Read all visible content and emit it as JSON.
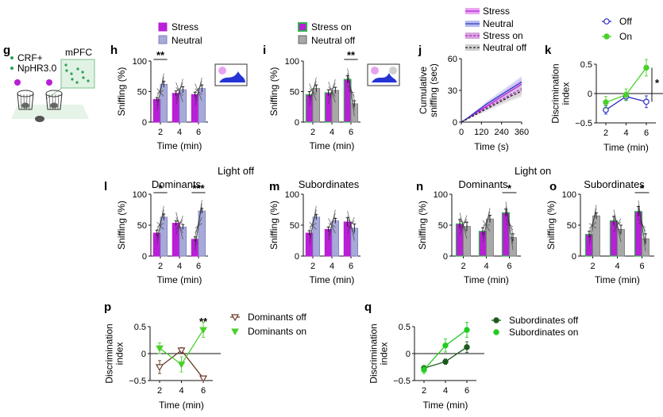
{
  "colors": {
    "stress": "#b81fd6",
    "neutral": "#a7a9d8",
    "stress_on": "#b81fd6",
    "stress_on_edge": "#2fb34a",
    "neutral_off": "#a8a8a8",
    "off": "#2b2bc4",
    "on": "#4ad02a",
    "dom_off": "#6b3b2a",
    "dom_on": "#4ad02a",
    "sub_off": "#1d5a1d",
    "sub_on": "#22cc22",
    "schematic_green": "#2e9c58",
    "schematic_magenta": "#b81fd6"
  },
  "section_labels": {
    "light_off": "Light off",
    "light_on": "Light on"
  },
  "panel_g": {
    "label": "g",
    "legend": [
      "CRF+",
      "NpHR3.0"
    ],
    "region": "mPFC"
  },
  "chart_data": [
    {
      "id": "h",
      "label": "h",
      "type": "bar",
      "categories": [
        "2",
        "4",
        "6"
      ],
      "series": [
        {
          "name": "Stress",
          "values": [
            37,
            47,
            45
          ]
        },
        {
          "name": "Neutral",
          "values": [
            62,
            53,
            55
          ]
        }
      ],
      "errors": [
        [
          3,
          4,
          4
        ],
        [
          5,
          5,
          6
        ]
      ],
      "xlabel": "Time (min)",
      "ylabel": "Sniffing (%)",
      "ylim": [
        0,
        100
      ],
      "yticks": [
        "0",
        "50",
        "100"
      ],
      "legend": [
        "Stress",
        "Neutral"
      ],
      "significance": [
        {
          "category": "2",
          "text": "**"
        }
      ]
    },
    {
      "id": "i",
      "label": "i",
      "type": "bar",
      "categories": [
        "2",
        "4",
        "6"
      ],
      "series": [
        {
          "name": "Stress on",
          "values": [
            45,
            48,
            70
          ]
        },
        {
          "name": "Neutral off",
          "values": [
            55,
            52,
            30
          ]
        }
      ],
      "errors": [
        [
          5,
          5,
          6
        ],
        [
          6,
          5,
          5
        ]
      ],
      "xlabel": "Time (min)",
      "ylabel": "Sniffing (%)",
      "ylim": [
        0,
        100
      ],
      "yticks": [
        "0",
        "50",
        "100"
      ],
      "legend": [
        "Stress on",
        "Neutral off"
      ],
      "significance": [
        {
          "category": "6",
          "text": "**"
        }
      ]
    },
    {
      "id": "j",
      "label": "j",
      "type": "line",
      "x": [
        0,
        30,
        60,
        90,
        120,
        150,
        180,
        210,
        240,
        270,
        300,
        330,
        360
      ],
      "series": [
        {
          "name": "Stress",
          "values": [
            0,
            3,
            6,
            9,
            12,
            15,
            18,
            21,
            24,
            27,
            30,
            33,
            36
          ]
        },
        {
          "name": "Neutral",
          "values": [
            0,
            3,
            6.5,
            10,
            13.5,
            17,
            20,
            23,
            26,
            29,
            32,
            35,
            38
          ]
        },
        {
          "name": "Stress on",
          "values": [
            0,
            2.5,
            5.5,
            8.5,
            11,
            14,
            16.5,
            19,
            21.5,
            24,
            26.5,
            29,
            31.5
          ]
        },
        {
          "name": "Neutral off",
          "values": [
            0,
            2.5,
            5,
            7.5,
            10,
            12.5,
            15,
            17.5,
            20,
            22.5,
            25,
            27,
            29.5
          ]
        }
      ],
      "xlabel": "Time (s)",
      "ylabel": "Cumulative sniffing (sec)",
      "ylabel_lines": [
        "Cumulative",
        "sniffing (sec)"
      ],
      "xlim": [
        0,
        360
      ],
      "ylim": [
        0,
        60
      ],
      "xticks": [
        "0",
        "120",
        "240",
        "360"
      ],
      "yticks": [
        "0",
        "30",
        "60"
      ],
      "legend": [
        "Stress",
        "Neutral",
        "Stress on",
        "Neutral off"
      ]
    },
    {
      "id": "k",
      "label": "k",
      "type": "line",
      "x": [
        2,
        4,
        6
      ],
      "series": [
        {
          "name": "Off",
          "values": [
            -0.28,
            -0.05,
            -0.14
          ],
          "errors": [
            0.07,
            0.06,
            0.1
          ]
        },
        {
          "name": "On",
          "values": [
            -0.15,
            -0.02,
            0.44
          ],
          "errors": [
            0.1,
            0.1,
            0.14
          ]
        }
      ],
      "xlabel": "Time (min)",
      "ylabel": "Discrimination index",
      "ylabel_lines": [
        "Discrimination",
        "index"
      ],
      "ylim": [
        -0.5,
        0.5
      ],
      "yticks": [
        "0.5",
        "0",
        "−0.5"
      ],
      "xticks": [
        "2",
        "4",
        "6"
      ],
      "legend": [
        "Off",
        "On"
      ],
      "significance": [
        {
          "text": "*"
        }
      ]
    },
    {
      "id": "l",
      "label": "l",
      "type": "bar",
      "title": "Dominants",
      "categories": [
        "2",
        "4",
        "6"
      ],
      "series": [
        {
          "name": "Stress",
          "values": [
            37,
            53,
            27
          ]
        },
        {
          "name": "Neutral",
          "values": [
            63,
            47,
            73
          ]
        }
      ],
      "errors": [
        [
          5,
          4,
          4
        ],
        [
          5,
          4,
          4
        ]
      ],
      "xlabel": "Time (min)",
      "ylabel": "Sniffing (%)",
      "ylim": [
        0,
        100
      ],
      "yticks": [
        "0",
        "50",
        "100"
      ],
      "significance": [
        {
          "category": "2",
          "text": "*"
        },
        {
          "category": "6",
          "text": "***"
        }
      ]
    },
    {
      "id": "m",
      "label": "m",
      "type": "bar",
      "title": "Subordinates",
      "categories": [
        "2",
        "4",
        "6"
      ],
      "series": [
        {
          "name": "Stress",
          "values": [
            37,
            43,
            55
          ]
        },
        {
          "name": "Neutral",
          "values": [
            63,
            57,
            45
          ]
        }
      ],
      "errors": [
        [
          4,
          4,
          7
        ],
        [
          4,
          4,
          7
        ]
      ],
      "xlabel": "Time (min)",
      "ylabel": "Sniffing (%)",
      "ylim": [
        0,
        100
      ],
      "yticks": [
        "0",
        "50",
        "100"
      ],
      "significance": []
    },
    {
      "id": "n",
      "label": "n",
      "type": "bar",
      "title": "Dominants",
      "categories": [
        "2",
        "4",
        "6"
      ],
      "series": [
        {
          "name": "Stress on",
          "values": [
            52,
            40,
            70
          ]
        },
        {
          "name": "Neutral off",
          "values": [
            48,
            60,
            30
          ]
        }
      ],
      "errors": [
        [
          7,
          6,
          6
        ],
        [
          7,
          6,
          6
        ]
      ],
      "xlabel": "Time (min)",
      "ylabel": "Sniffing (%)",
      "ylim": [
        0,
        100
      ],
      "yticks": [
        "0",
        "50",
        "100"
      ],
      "significance": [
        {
          "category": "6",
          "text": "*"
        }
      ]
    },
    {
      "id": "o",
      "label": "o",
      "type": "bar",
      "title": "Subordinates",
      "categories": [
        "2",
        "4",
        "6"
      ],
      "series": [
        {
          "name": "Stress on",
          "values": [
            35,
            57,
            72
          ]
        },
        {
          "name": "Neutral off",
          "values": [
            65,
            43,
            28
          ]
        }
      ],
      "errors": [
        [
          5,
          7,
          8
        ],
        [
          5,
          7,
          8
        ]
      ],
      "xlabel": "Time (min)",
      "ylabel": "Sniffing (%)",
      "ylim": [
        0,
        100
      ],
      "yticks": [
        "0",
        "50",
        "100"
      ],
      "significance": [
        {
          "category": "6",
          "text": "*"
        }
      ]
    },
    {
      "id": "p",
      "label": "p",
      "type": "line",
      "x": [
        2,
        4,
        6
      ],
      "series": [
        {
          "name": "Dominants off",
          "values": [
            -0.25,
            0.06,
            -0.46
          ],
          "errors": [
            0.12,
            0.05,
            0.04
          ]
        },
        {
          "name": "Dominants on",
          "values": [
            0.1,
            -0.2,
            0.44
          ],
          "errors": [
            0.1,
            0.14,
            0.14
          ]
        }
      ],
      "xlabel": "Time (min)",
      "ylabel": "Discrimination index",
      "ylabel_lines": [
        "Discrimination",
        "index"
      ],
      "ylim": [
        -0.5,
        0.5
      ],
      "yticks": [
        "0.5",
        "0",
        "−0.5"
      ],
      "xticks": [
        "2",
        "4",
        "6"
      ],
      "legend": [
        "Dominants off",
        "Dominants on"
      ],
      "significance": [
        {
          "x": 6,
          "text": "**"
        }
      ]
    },
    {
      "id": "q",
      "label": "q",
      "type": "line",
      "x": [
        2,
        4,
        6
      ],
      "series": [
        {
          "name": "Subordinates off",
          "values": [
            -0.27,
            -0.15,
            0.12
          ],
          "errors": [
            0.05,
            0.05,
            0.1
          ]
        },
        {
          "name": "Subordinates on",
          "values": [
            -0.3,
            0.15,
            0.44
          ],
          "errors": [
            0.07,
            0.12,
            0.14
          ]
        }
      ],
      "xlabel": "Time (min)",
      "ylabel": "Discrimination index",
      "ylabel_lines": [
        "Discrimination",
        "index"
      ],
      "ylim": [
        -0.5,
        0.5
      ],
      "yticks": [
        "0.5",
        "0",
        "−0.5"
      ],
      "xticks": [
        "2",
        "4",
        "6"
      ],
      "legend": [
        "Subordinates off",
        "Subordinates on"
      ],
      "significance": []
    }
  ]
}
